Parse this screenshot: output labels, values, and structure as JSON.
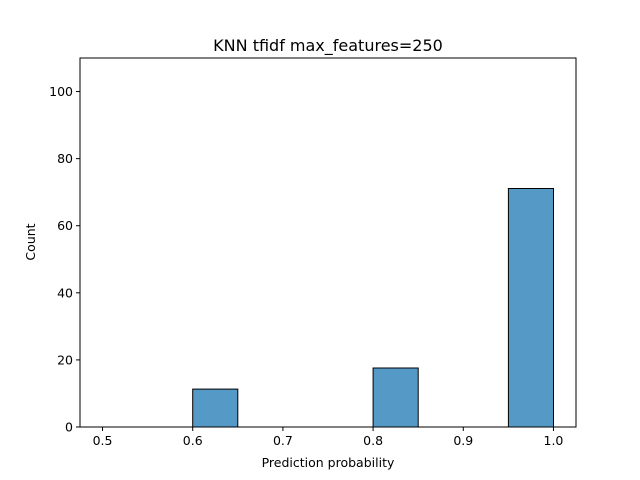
{
  "chart_data": {
    "type": "bar",
    "title": "KNN tfidf max_features=250",
    "xlabel": "Prediction probability",
    "ylabel": "Count",
    "xlim": [
      0.475,
      1.025
    ],
    "ylim": [
      0,
      110
    ],
    "x_ticks": [
      "0.5",
      "0.6",
      "0.7",
      "0.8",
      "0.9",
      "1.0"
    ],
    "y_ticks": [
      "0",
      "20",
      "40",
      "60",
      "80",
      "100"
    ],
    "bins": [
      {
        "start": 0.6,
        "end": 0.65,
        "value": 11.3
      },
      {
        "start": 0.8,
        "end": 0.85,
        "value": 17.6
      },
      {
        "start": 0.95,
        "end": 1.0,
        "value": 71.1
      }
    ],
    "grid": false,
    "colors": {
      "bar_fill": "#5599c7",
      "bar_edge": "#000000"
    }
  }
}
